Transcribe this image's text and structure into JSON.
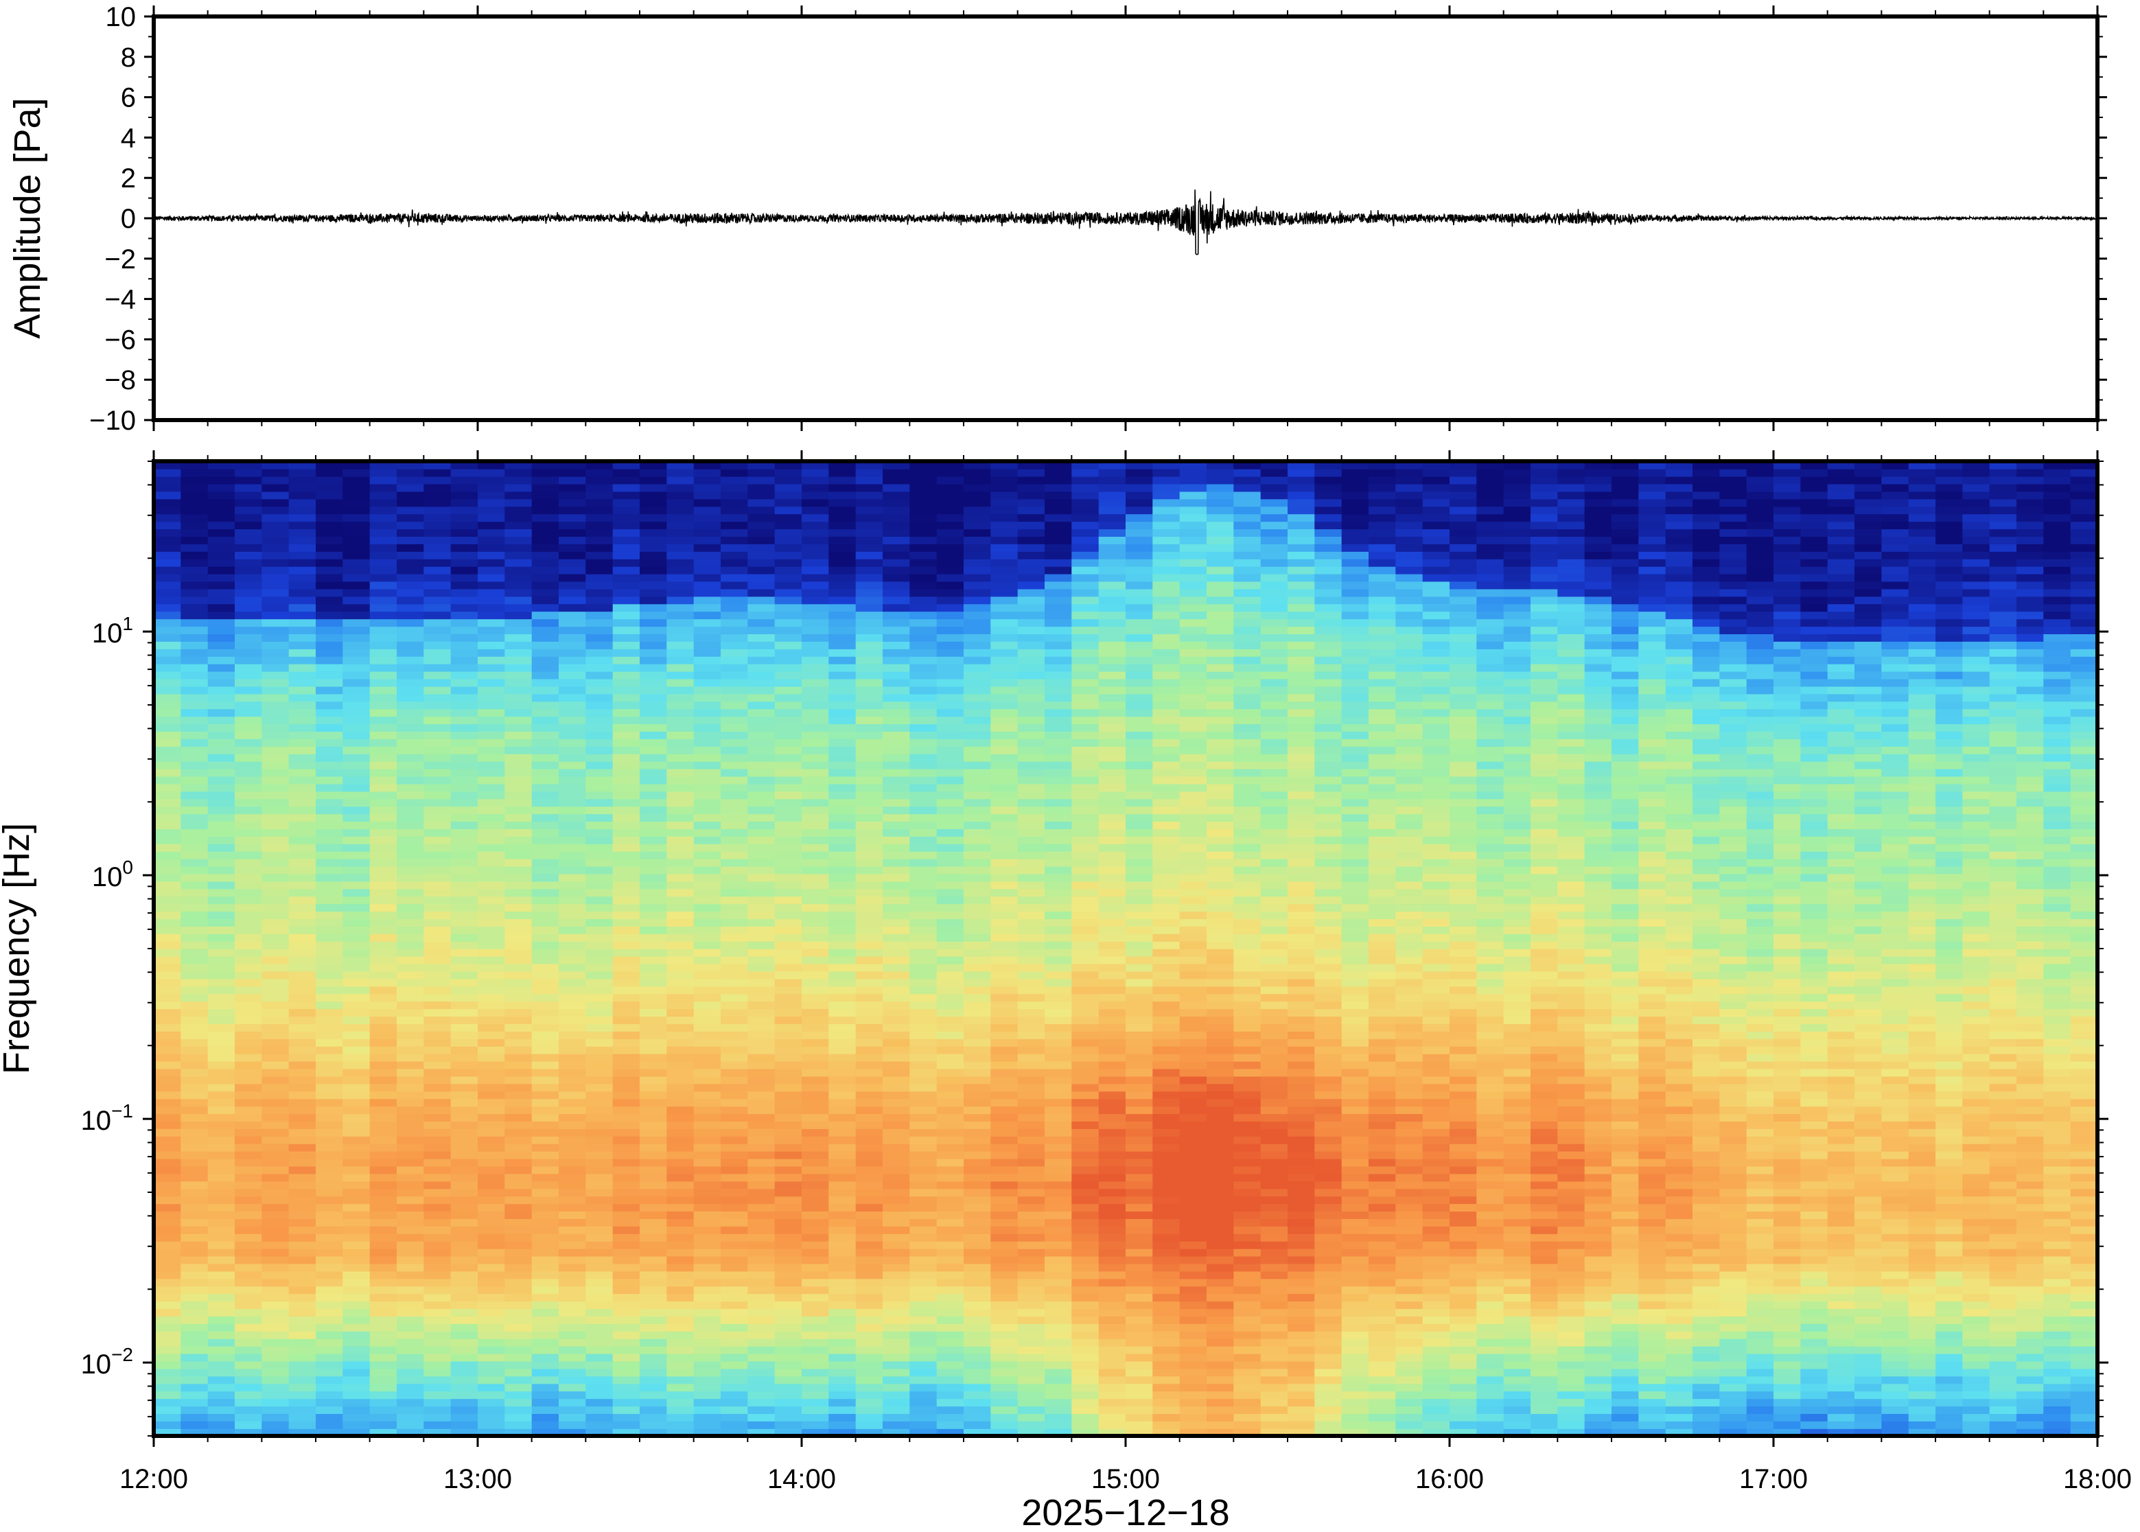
{
  "chart_data": [
    {
      "type": "line",
      "panel": "waveform",
      "ylabel": "Amplitude [Pa]",
      "ylim": [
        -10,
        10
      ],
      "yticks": [
        10,
        8,
        6,
        4,
        2,
        0,
        -2,
        -4,
        -6,
        -8,
        -10
      ],
      "ytick_labels": [
        "10",
        "8",
        "6",
        "4",
        "2",
        "0",
        "−2",
        "−4",
        "−6",
        "−8",
        "−10"
      ],
      "x_range": [
        "12:00",
        "18:00"
      ],
      "envelope_note": "noise centered at 0; max excursion about -1.8 near 15:13",
      "envelope": {
        "t_hours": [
          12.0,
          12.5,
          12.85,
          13.0,
          13.5,
          13.75,
          14.0,
          14.5,
          14.8,
          15.0,
          15.15,
          15.22,
          15.35,
          15.5,
          15.8,
          16.0,
          16.4,
          16.6,
          17.0,
          17.5,
          18.0
        ],
        "amp": [
          0.2,
          0.3,
          0.45,
          0.25,
          0.35,
          0.5,
          0.3,
          0.35,
          0.55,
          0.5,
          0.9,
          1.8,
          0.8,
          0.6,
          0.4,
          0.35,
          0.5,
          0.3,
          0.15,
          0.1,
          0.1
        ]
      }
    },
    {
      "type": "heatmap",
      "panel": "spectrogram",
      "ylabel": "Frequency [Hz]",
      "y_scale": "log",
      "ylim": [
        0.005,
        50
      ],
      "ytick_labels": [
        {
          "base": "10",
          "exp": "1",
          "value": 10
        },
        {
          "base": "10",
          "exp": "0",
          "value": 1
        },
        {
          "base": "10",
          "exp": "−1",
          "value": 0.1
        },
        {
          "base": "10",
          "exp": "−2",
          "value": 0.01
        }
      ],
      "xlabel": "2025−12−18",
      "xtick_labels": [
        "12:00",
        "13:00",
        "14:00",
        "15:00",
        "16:00",
        "17:00",
        "18:00"
      ],
      "colormap": [
        "#0c0c78",
        "#1a3fd6",
        "#2f8ff0",
        "#5ee0f0",
        "#a8f0a0",
        "#f0e880",
        "#f8c060",
        "#f89848",
        "#e85a30"
      ],
      "features": "peak power 0.03-0.15 Hz around 15:00-15:40; broad energy up to ~40 Hz at 15:15"
    }
  ]
}
